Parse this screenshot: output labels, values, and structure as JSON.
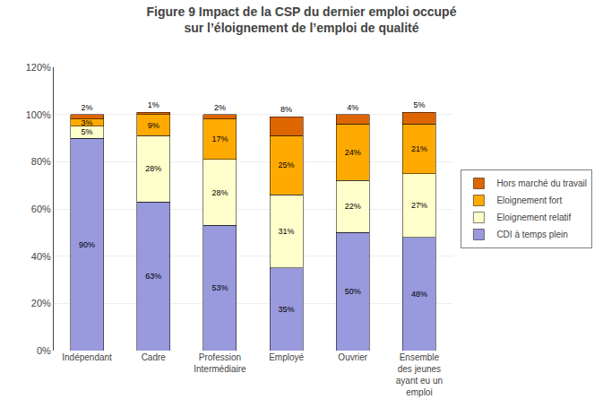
{
  "chart_data": {
    "type": "bar",
    "stacked": true,
    "title": "Figure 9 Impact de la CSP du dernier emploi occupé\nsur l’éloignement de l’emploi de qualité",
    "categories": [
      "Indépendant",
      "Cadre",
      "Profession\nIntermédiaire",
      "Employé",
      "Ouvrier",
      "Ensemble\ndes jeunes\nayant eu un\nemploi"
    ],
    "series": [
      {
        "name": "CDI à temps plein",
        "color": "#9999DD",
        "values": [
          90,
          63,
          53,
          35,
          50,
          48
        ],
        "value_labels": [
          "90%",
          "63%",
          "53%",
          "35%",
          "50%",
          "48%"
        ]
      },
      {
        "name": "Eloignement relatif",
        "color": "#FFFFCC",
        "values": [
          5,
          28,
          28,
          31,
          22,
          27
        ],
        "value_labels": [
          "5%",
          "28%",
          "28%",
          "31%",
          "22%",
          "27%"
        ]
      },
      {
        "name": "Eloignement fort",
        "color": "#FFAA00",
        "values": [
          3,
          9,
          17,
          25,
          24,
          21
        ],
        "value_labels": [
          "3%",
          "9%",
          "17%",
          "25%",
          "24%",
          "21%"
        ]
      },
      {
        "name": "Hors marché du travail",
        "color": "#DD6600",
        "values": [
          2,
          1,
          2,
          8,
          4,
          5
        ],
        "value_labels": [
          "2%",
          "1%",
          "2%",
          "8%",
          "4%",
          "5%"
        ]
      }
    ],
    "ylim": [
      0,
      120
    ],
    "yticks": [
      {
        "value": 0,
        "label": "0%"
      },
      {
        "value": 20,
        "label": "20%"
      },
      {
        "value": 40,
        "label": "40%"
      },
      {
        "value": 60,
        "label": "60%"
      },
      {
        "value": 80,
        "label": "80%"
      },
      {
        "value": 100,
        "label": "100%"
      },
      {
        "value": 120,
        "label": "120%"
      }
    ],
    "grid": true,
    "data_labels": true,
    "legend": "right"
  }
}
